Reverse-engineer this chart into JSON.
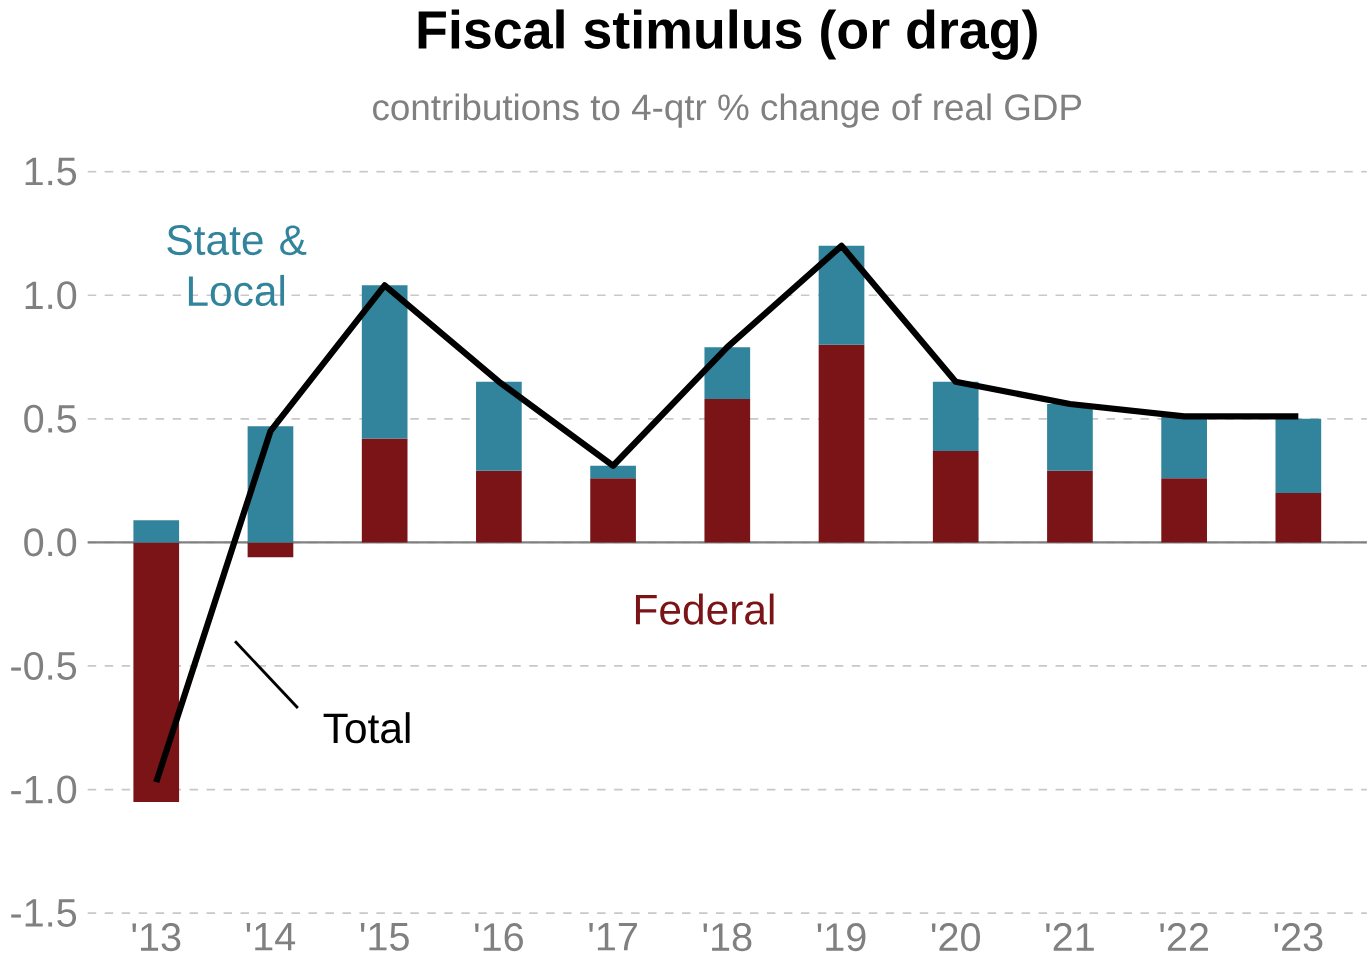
{
  "chart_data": {
    "type": "bar",
    "title": "Fiscal stimulus (or drag)",
    "subtitle": "contributions to 4-qtr % change of real GDP",
    "stacked": true,
    "grid": "y",
    "categories": [
      "'13",
      "'14",
      "'15",
      "'16",
      "'17",
      "'18",
      "'19",
      "'20",
      "'21",
      "'22",
      "'23"
    ],
    "series": [
      {
        "name": "Federal",
        "color": "#7b1416",
        "values": [
          -1.05,
          -0.06,
          0.42,
          0.29,
          0.26,
          0.58,
          0.8,
          0.37,
          0.29,
          0.26,
          0.2
        ]
      },
      {
        "name": "State & Local",
        "color": "#31849b",
        "values": [
          0.09,
          0.47,
          0.62,
          0.36,
          0.05,
          0.21,
          0.4,
          0.28,
          0.27,
          0.25,
          0.3
        ]
      },
      {
        "name": "Total",
        "type": "line",
        "color": "#000000",
        "values": [
          -0.97,
          0.45,
          1.04,
          0.65,
          0.31,
          0.79,
          1.2,
          0.65,
          0.56,
          0.51,
          0.51
        ]
      }
    ],
    "ylim": [
      -1.5,
      1.5
    ],
    "yticks": [
      -1.5,
      {
        "value": -1,
        "label": "-1.0"
      },
      -0.5,
      {
        "value": 0,
        "label": "0.0"
      },
      0.5,
      {
        "value": 1,
        "label": "1.0"
      },
      1.5
    ]
  }
}
